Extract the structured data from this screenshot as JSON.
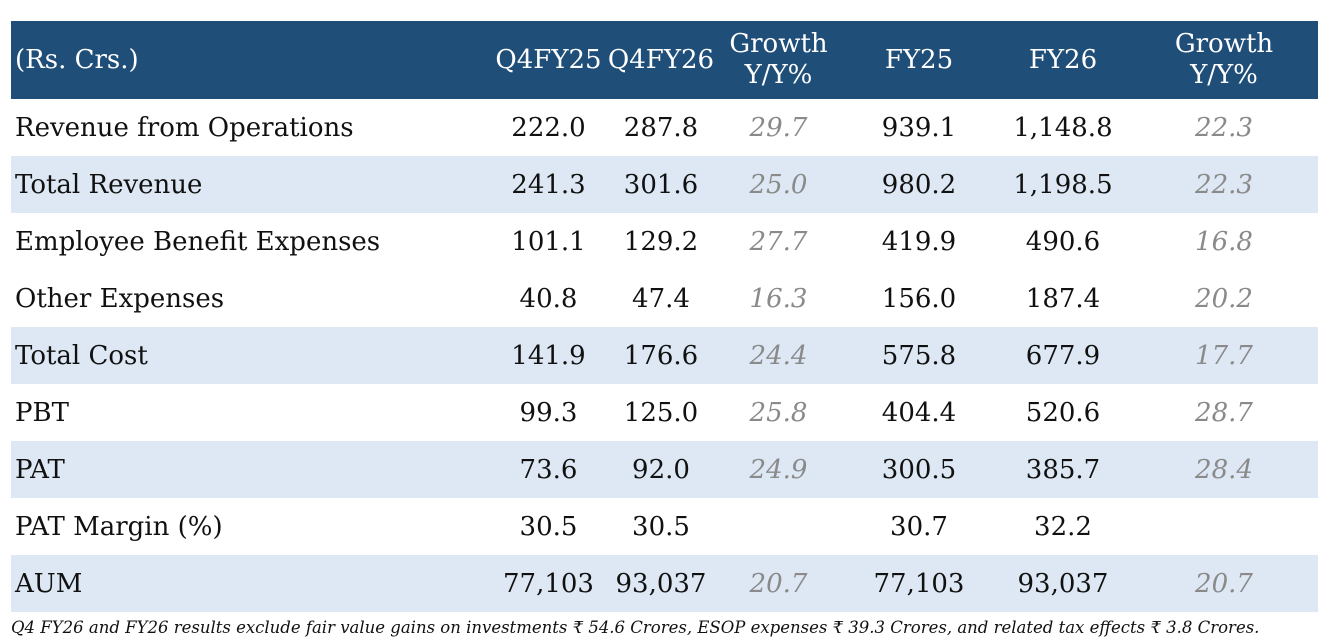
{
  "header": {
    "unit": "(Rs. Crs.)",
    "q4fy25": "Q4FY25",
    "q4fy26": "Q4FY26",
    "growth_q_line1": "Growth",
    "growth_q_line2": "Y/Y%",
    "fy25": "FY25",
    "fy26": "FY26",
    "growth_fy_line1": "Growth",
    "growth_fy_line2": "Y/Y%"
  },
  "rows": [
    {
      "label": "Revenue from Operations",
      "q4fy25": "222.0",
      "q4fy26": "287.8",
      "growth_q": "29.7",
      "fy25": "939.1",
      "fy26": "1,148.8",
      "growth_fy": "22.3"
    },
    {
      "label": "Total Revenue",
      "q4fy25": "241.3",
      "q4fy26": "301.6",
      "growth_q": "25.0",
      "fy25": "980.2",
      "fy26": "1,198.5",
      "growth_fy": "22.3"
    },
    {
      "label": "Employee Benefit Expenses",
      "q4fy25": "101.1",
      "q4fy26": "129.2",
      "growth_q": "27.7",
      "fy25": "419.9",
      "fy26": "490.6",
      "growth_fy": "16.8"
    },
    {
      "label": "Other Expenses",
      "q4fy25": "40.8",
      "q4fy26": "47.4",
      "growth_q": "16.3",
      "fy25": "156.0",
      "fy26": "187.4",
      "growth_fy": "20.2"
    },
    {
      "label": "Total Cost",
      "q4fy25": "141.9",
      "q4fy26": "176.6",
      "growth_q": "24.4",
      "fy25": "575.8",
      "fy26": "677.9",
      "growth_fy": "17.7"
    },
    {
      "label": "PBT",
      "q4fy25": "99.3",
      "q4fy26": "125.0",
      "growth_q": "25.8",
      "fy25": "404.4",
      "fy26": "520.6",
      "growth_fy": "28.7"
    },
    {
      "label": "PAT",
      "q4fy25": "73.6",
      "q4fy26": "92.0",
      "growth_q": "24.9",
      "fy25": "300.5",
      "fy26": "385.7",
      "growth_fy": "28.4"
    },
    {
      "label": "PAT Margin (%)",
      "q4fy25": "30.5",
      "q4fy26": "30.5",
      "growth_q": "",
      "fy25": "30.7",
      "fy26": "32.2",
      "growth_fy": ""
    },
    {
      "label": "AUM",
      "q4fy25": "77,103",
      "q4fy26": "93,037",
      "growth_q": "20.7",
      "fy25": "77,103",
      "fy26": "93,037",
      "growth_fy": "20.7"
    }
  ],
  "footnote": "Q4 FY26 and FY26 results exclude fair value gains on investments ₹ 54.6 Crores, ESOP expenses ₹ 39.3 Crores, and related tax effects ₹ 3.8 Crores.",
  "colors": {
    "header_bg": "#1f4e79",
    "header_text": "#ffffff",
    "shaded_row": "#dde8f4",
    "growth_text": "#8a8a8a"
  }
}
